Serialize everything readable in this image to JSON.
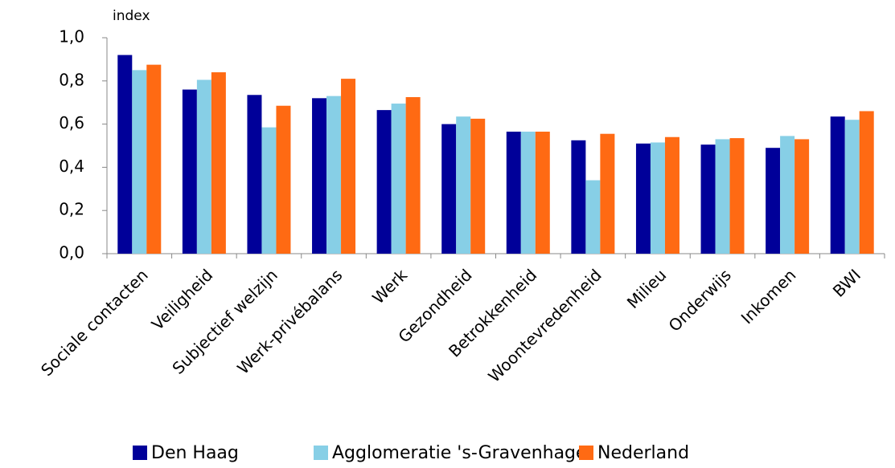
{
  "chart_data": {
    "type": "bar",
    "y_axis_label": "index",
    "categories": [
      "Sociale contacten",
      "Veiligheid",
      "Subjectief welzijn",
      "Werk-privébalans",
      "Werk",
      "Gezondheid",
      "Betrokkenheid",
      "Woontevredenheid",
      "Milieu",
      "Onderwijs",
      "Inkomen",
      "BWI"
    ],
    "series": [
      {
        "name": "Den Haag",
        "color": "#000099",
        "values": [
          0.92,
          0.76,
          0.735,
          0.72,
          0.665,
          0.6,
          0.565,
          0.525,
          0.51,
          0.505,
          0.49,
          0.635
        ]
      },
      {
        "name": "Agglomeratie 's-Gravenhage",
        "color": "#87cfe6",
        "values": [
          0.85,
          0.805,
          0.585,
          0.73,
          0.695,
          0.635,
          0.565,
          0.34,
          0.515,
          0.53,
          0.545,
          0.62
        ]
      },
      {
        "name": "Nederland",
        "color": "#ff6a13",
        "values": [
          0.875,
          0.84,
          0.685,
          0.81,
          0.725,
          0.625,
          0.565,
          0.555,
          0.54,
          0.535,
          0.53,
          0.66
        ]
      }
    ],
    "ylim": [
      0,
      1
    ],
    "yticks": [
      {
        "value": 0,
        "label": "0,0"
      },
      {
        "value": 0.2,
        "label": "0,2"
      },
      {
        "value": 0.4,
        "label": "0,4"
      },
      {
        "value": 0.6,
        "label": "0,6"
      },
      {
        "value": 0.8,
        "label": "0,8"
      },
      {
        "value": 1,
        "label": "1,0"
      }
    ],
    "legend": "bottom"
  }
}
